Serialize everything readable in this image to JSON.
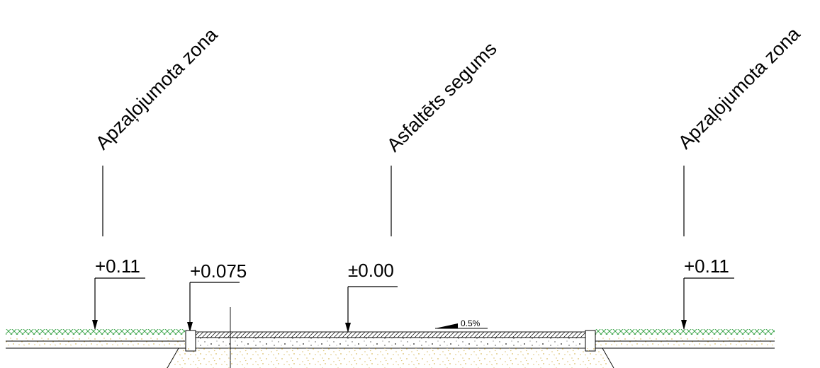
{
  "zone_labels": {
    "left": "Apzaļojumota zona",
    "center": "Asfaltēts segums",
    "right": "Apzaļojumota zona"
  },
  "level_marks": {
    "left_green": "+0.11",
    "curb": "+0.075",
    "asphalt": "±0.00",
    "right_green": "+0.11"
  },
  "slope_label": "0.5%",
  "colors": {
    "grass_hatch": "#2e9e3e",
    "soil_speckle": "#c9a227",
    "line": "#000000"
  }
}
